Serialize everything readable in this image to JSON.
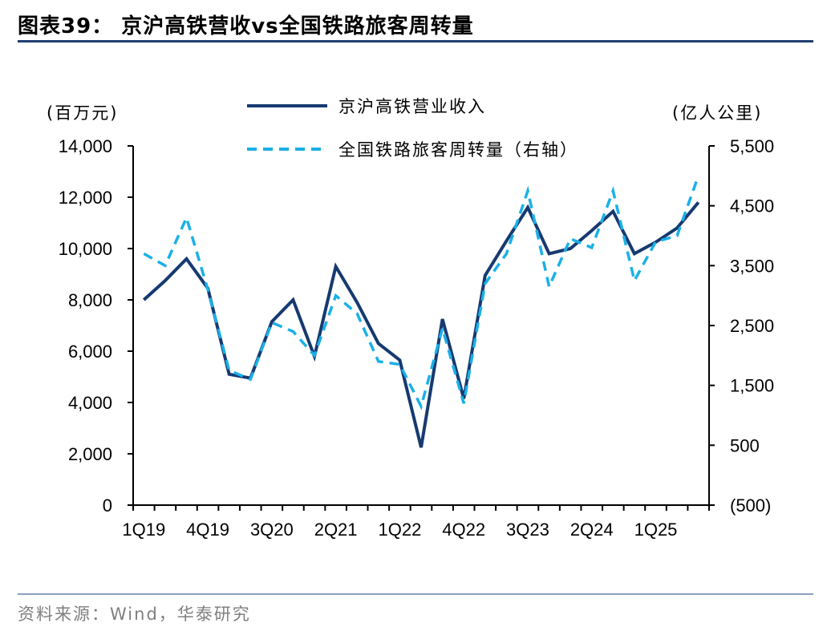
{
  "title": "图表39：  京沪高铁营收vs全国铁路旅客周转量",
  "source": "资料来源：Wind，华泰研究",
  "colors": {
    "revenue": "#163a70",
    "turnover": "#1ab0e8",
    "rule": "#1f3f73"
  },
  "chart_data": {
    "type": "line",
    "left_unit": "(百万元)",
    "right_unit": "(亿人公里)",
    "x": [
      "1Q19",
      "2Q19",
      "3Q19",
      "4Q19",
      "1Q20",
      "2Q20",
      "3Q20",
      "4Q20",
      "1Q21",
      "2Q21",
      "3Q21",
      "4Q21",
      "1Q22",
      "2Q22",
      "3Q22",
      "4Q22",
      "1Q23",
      "2Q23",
      "3Q23",
      "4Q23",
      "1Q24",
      "2Q24",
      "3Q24",
      "4Q24",
      "1Q25",
      "2Q25",
      "3Q25"
    ],
    "x_tick_labels": [
      "1Q19",
      "4Q19",
      "3Q20",
      "2Q21",
      "1Q22",
      "4Q22",
      "3Q23",
      "2Q24",
      "1Q25"
    ],
    "y_left_ticks": [
      "14,000",
      "12,000",
      "10,000",
      "8,000",
      "6,000",
      "4,000",
      "2,000",
      "0"
    ],
    "y_right_ticks": [
      "5,500",
      "4,500",
      "3,500",
      "2,500",
      "1,500",
      "500",
      "(500)"
    ],
    "ylim_left": [
      0,
      14000
    ],
    "ylim_right": [
      -500,
      5500
    ],
    "series": [
      {
        "name": "京沪高铁营业收入",
        "axis": "left",
        "style": "solid",
        "values": [
          8000,
          8750,
          9600,
          8450,
          5100,
          4950,
          7150,
          8000,
          5800,
          9300,
          7900,
          6300,
          5650,
          2250,
          7250,
          4150,
          8950,
          10300,
          11600,
          9800,
          10000,
          10700,
          11450,
          9800,
          10250,
          10800,
          11800
        ]
      },
      {
        "name": "全国铁路旅客周转量（右轴）",
        "axis": "right",
        "style": "dashed",
        "values": [
          3700,
          3500,
          4300,
          3100,
          1750,
          1600,
          2550,
          2400,
          2000,
          3000,
          2700,
          1900,
          1850,
          1150,
          2450,
          1200,
          3200,
          3700,
          4750,
          3150,
          3950,
          3800,
          4750,
          3250,
          3900,
          4000,
          5000
        ]
      }
    ]
  }
}
